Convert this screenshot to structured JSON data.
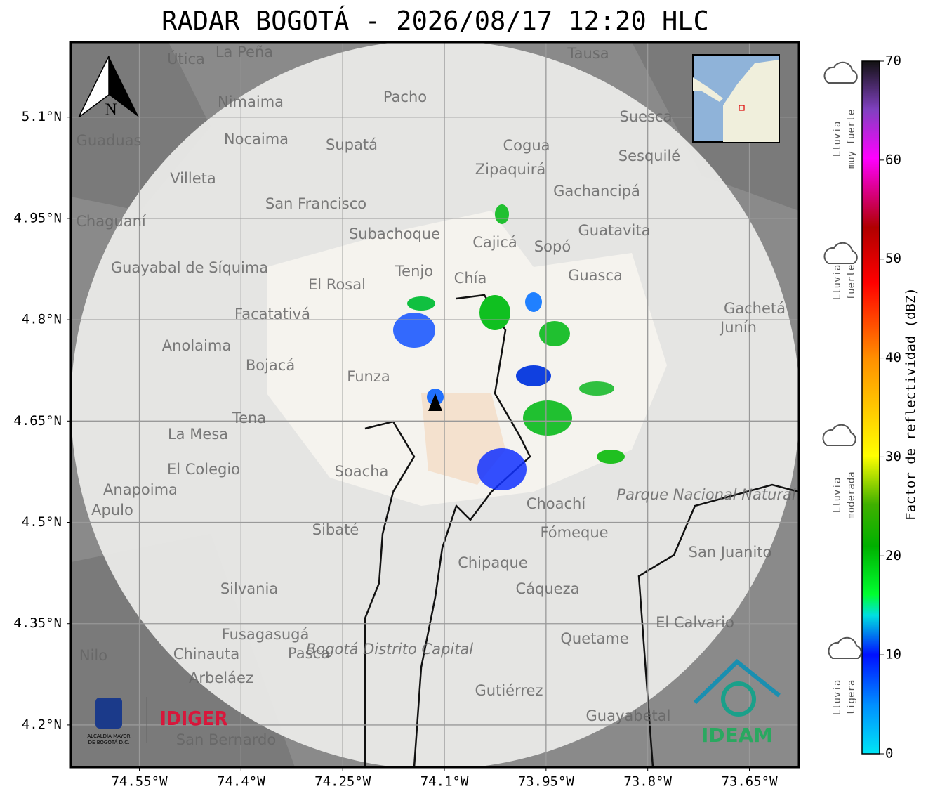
{
  "title": "RADAR BOGOTÁ - 2026/08/17 12:20 HLC",
  "map": {
    "type": "map",
    "xlim": [
      -74.651,
      -73.577
    ],
    "ylim": [
      4.1375,
      5.211
    ],
    "xticks": [
      {
        "value": -74.55,
        "label": "74.55°W"
      },
      {
        "value": -74.4,
        "label": "74.4°W"
      },
      {
        "value": -74.25,
        "label": "74.25°W"
      },
      {
        "value": -74.1,
        "label": "74.1°W"
      },
      {
        "value": -73.95,
        "label": "73.95°W"
      },
      {
        "value": -73.8,
        "label": "73.8°W"
      },
      {
        "value": -73.65,
        "label": "73.65°W"
      }
    ],
    "yticks": [
      {
        "value": 4.2,
        "label": "4.2°N"
      },
      {
        "value": 4.35,
        "label": "4.35°N"
      },
      {
        "value": 4.5,
        "label": "4.5°N"
      },
      {
        "value": 4.65,
        "label": "4.65°N"
      },
      {
        "value": 4.8,
        "label": "4.8°N"
      },
      {
        "value": 4.95,
        "label": "4.95°N"
      },
      {
        "value": 5.1,
        "label": "5.1°N"
      }
    ],
    "grid": true,
    "places": [
      "La Peña",
      "Útica",
      "Tausa",
      "Pacho",
      "Nimaima",
      "Guaduas",
      "Nocaima",
      "Supatá",
      "Cogua",
      "Suesca",
      "Sesquilé",
      "Zipaquirá",
      "Villeta",
      "Gachancipá",
      "San Francisco",
      "Chaguaní",
      "Guatavita",
      "Subachoque",
      "Cajicá",
      "Sopó",
      "Guayabal de Síquima",
      "Tenjo",
      "Chía",
      "Guasca",
      "El Rosal",
      "Facatativá",
      "Gachetá",
      "Junín",
      "Anolaima",
      "Bojacá",
      "Funza",
      "Tena",
      "La Mesa",
      "El Colegio",
      "Soacha",
      "Anapoima",
      "Apulo",
      "Choachí",
      "Sibaté",
      "Fómeque",
      "Chipaque",
      "San Juanito",
      "Silvania",
      "Cáqueza",
      "El Calvario",
      "Fusagasugá",
      "Pasca",
      "Chinauta",
      "Nilo",
      "Quetame",
      "Arbeláez",
      "Gutiérrez",
      "Guayabetal",
      "San Bernardo",
      "Parque Nacional Natural Chingaza",
      "Bogotá Distrito Capital"
    ],
    "compass": "N"
  },
  "colorbar": {
    "label": "Factor de reflectividad (dBZ)",
    "lim": [
      0,
      70
    ],
    "ticks": [
      0,
      10,
      20,
      30,
      40,
      50,
      60,
      70
    ]
  },
  "rain_levels": [
    [
      "Lluvia",
      "muy fuerte"
    ],
    [
      "Lluvia",
      "fuerte"
    ],
    [
      "Lluvia",
      "moderada"
    ],
    [
      "Lluvia",
      "ligera"
    ]
  ],
  "logos": {
    "alcaldia": [
      "ALCALDÍA MAYOR",
      "DE BOGOTÁ D.C."
    ],
    "idiger": "IDIGER",
    "ideam": "IDEAM"
  }
}
